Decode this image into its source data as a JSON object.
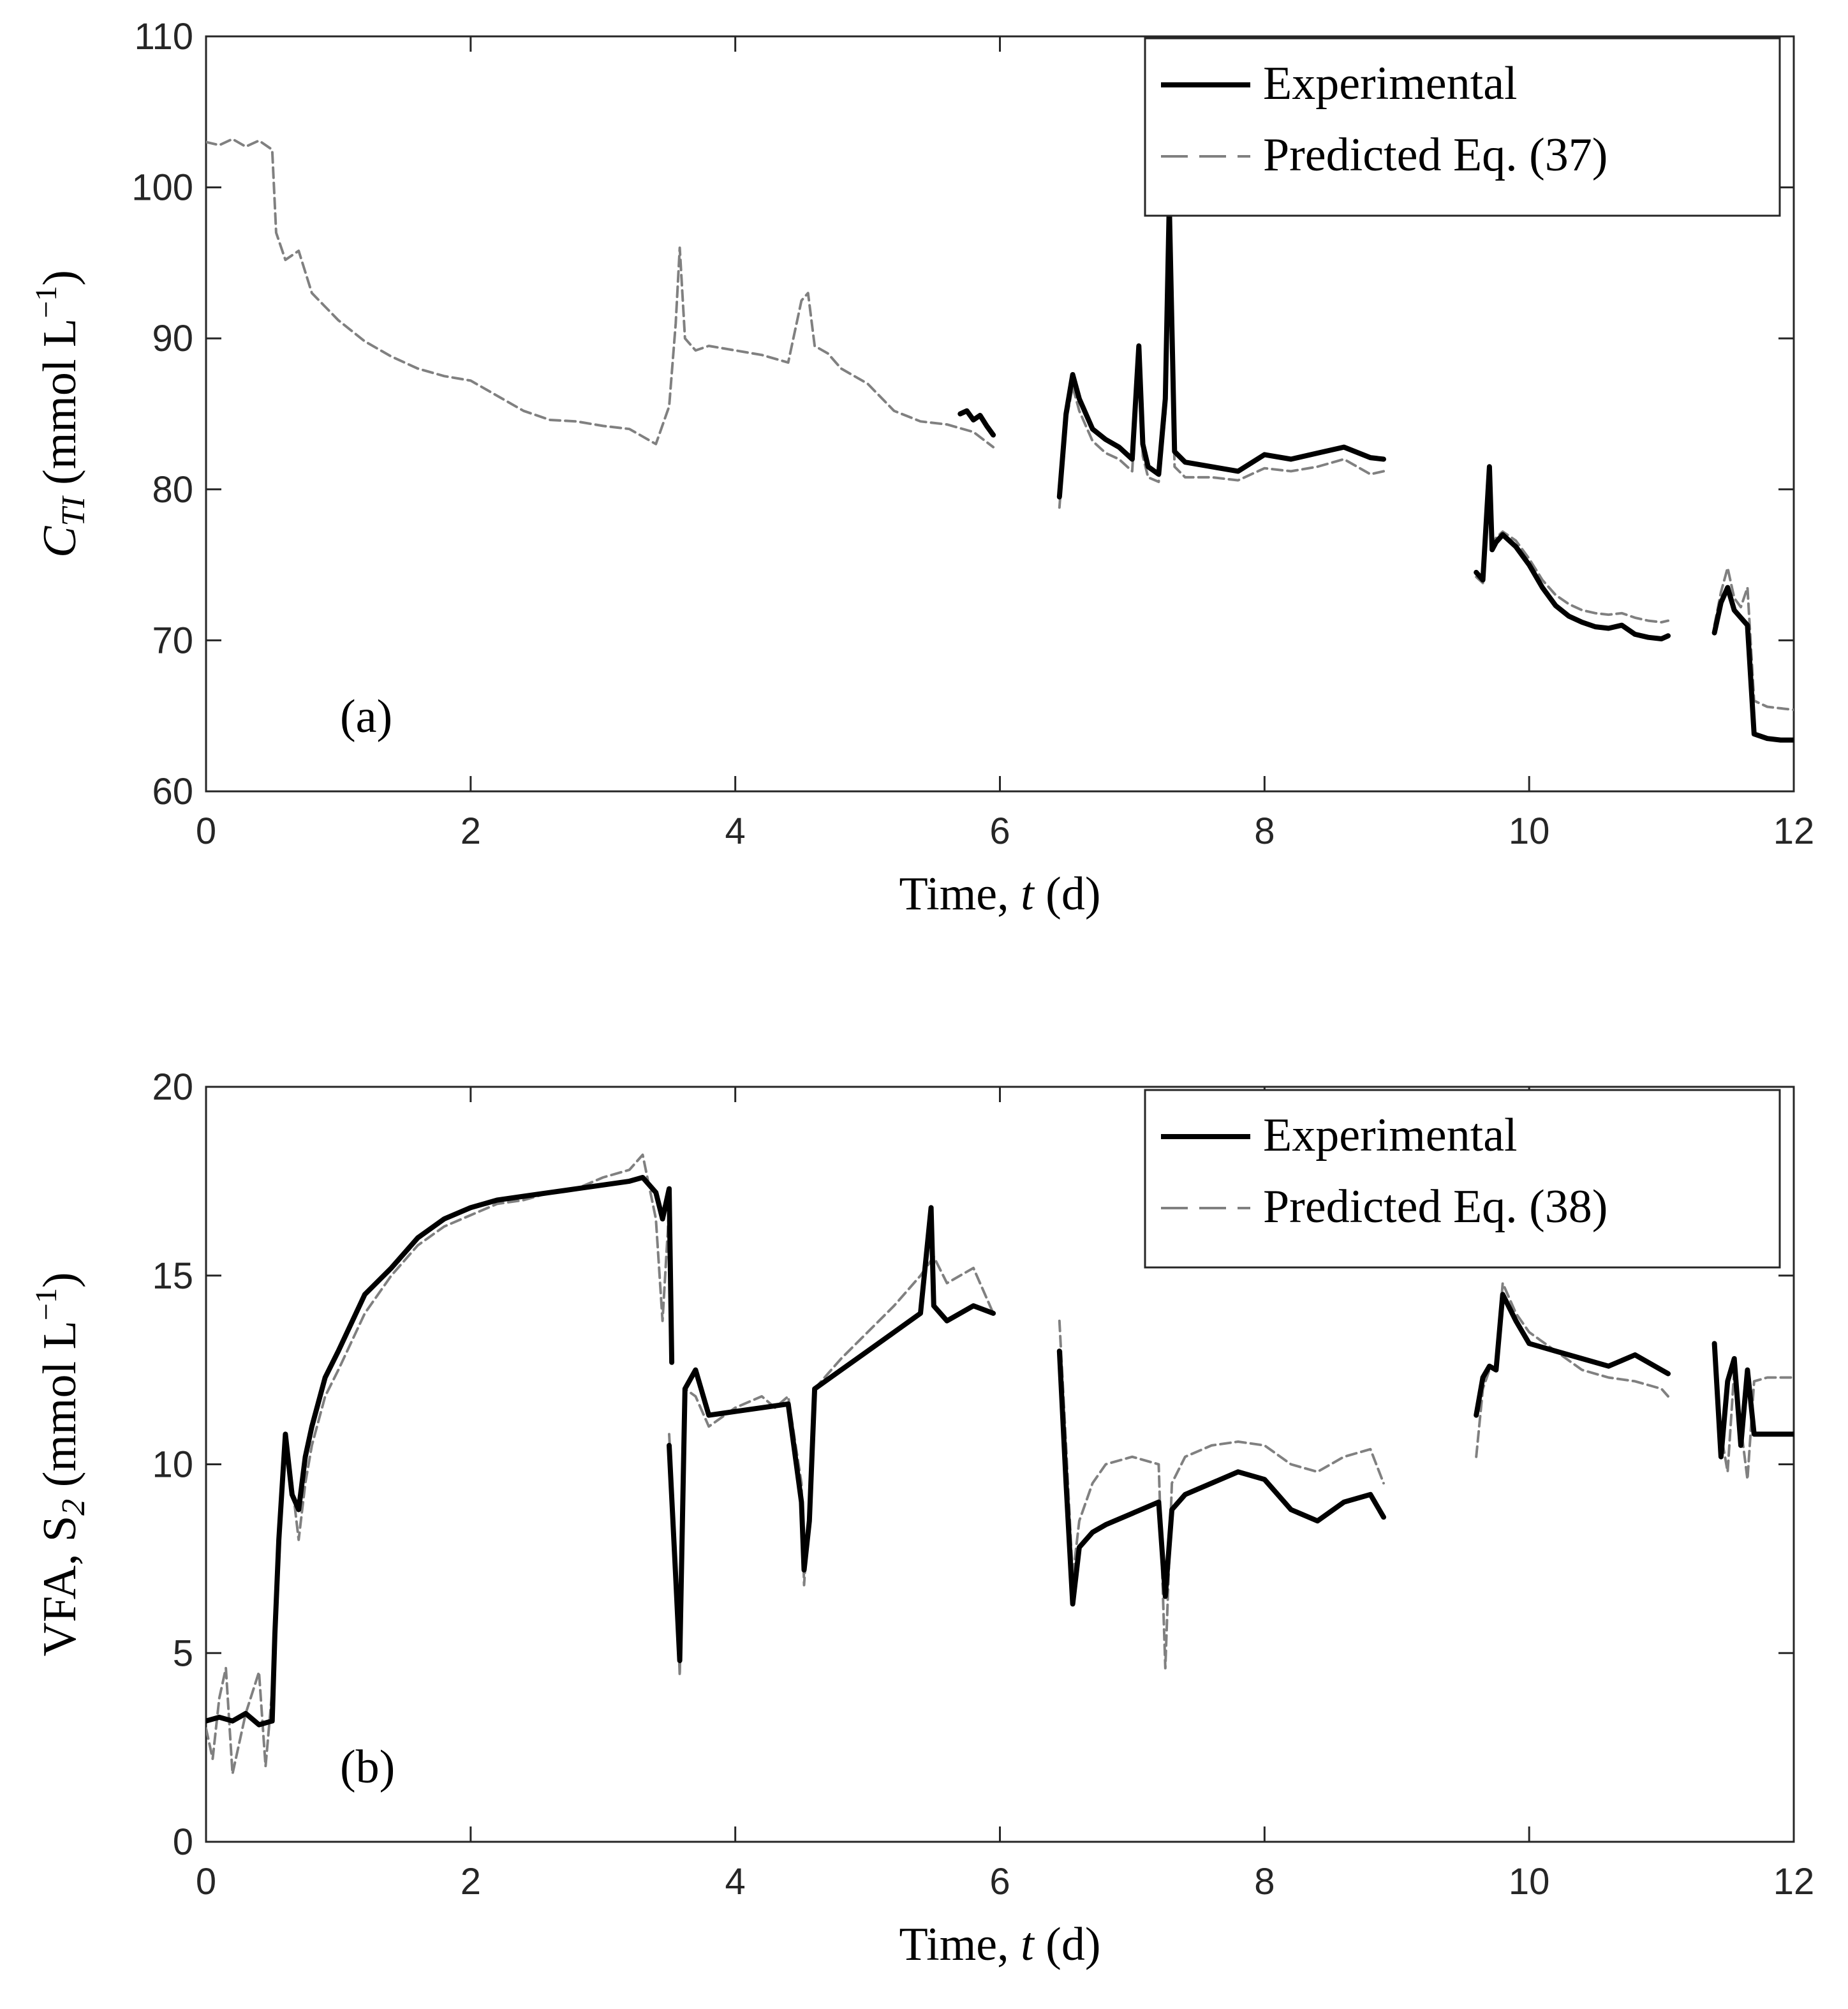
{
  "chart_data": [
    {
      "type": "line",
      "panel_label": "(a)",
      "xlabel": "Time, t (d)",
      "xlabel_prefix": "Time, ",
      "xlabel_var": "t",
      "xlabel_suffix": " (d)",
      "ylabel": "C_TI (mmol L^-1)",
      "ylabel_var": "C",
      "ylabel_sub": "TI",
      "ylabel_unit_open": " (mmol L",
      "ylabel_unit_exp": "−1",
      "ylabel_unit_close": ")",
      "xlim": [
        0,
        12
      ],
      "ylim": [
        60,
        110
      ],
      "xticks": [
        0,
        2,
        4,
        6,
        8,
        10,
        12
      ],
      "yticks": [
        60,
        70,
        80,
        90,
        100,
        110
      ],
      "legend_position": "top-right",
      "series": [
        {
          "name": "Experimental",
          "style": "solid",
          "color": "#000000",
          "segments": [
            {
              "x": [
                5.7,
                5.75,
                5.8,
                5.85,
                5.9,
                5.95
              ],
              "y": [
                85.0,
                85.2,
                84.6,
                84.9,
                84.2,
                83.6
              ]
            },
            {
              "x": [
                6.45,
                6.5,
                6.55,
                6.6,
                6.7,
                6.8,
                6.9,
                7.0,
                7.05,
                7.08,
                7.12,
                7.2,
                7.25,
                7.28,
                7.32,
                7.4,
                7.6,
                7.8,
                8.0,
                8.2,
                8.4,
                8.6,
                8.8,
                8.9
              ],
              "y": [
                79.5,
                85.0,
                87.6,
                86.0,
                84.0,
                83.3,
                82.8,
                82.0,
                89.5,
                83.0,
                81.5,
                81.0,
                86.0,
                99.0,
                82.5,
                81.8,
                81.5,
                81.2,
                82.3,
                82.0,
                82.4,
                82.8,
                82.1,
                82.0
              ]
            },
            {
              "x": [
                9.6,
                9.65,
                9.7,
                9.72,
                9.75,
                9.8,
                9.9,
                10.0,
                10.1,
                10.2,
                10.3,
                10.4,
                10.5,
                10.6,
                10.7,
                10.8,
                10.9,
                11.0,
                11.05
              ],
              "y": [
                74.5,
                74.0,
                81.5,
                76.0,
                76.5,
                77.0,
                76.2,
                75.0,
                73.5,
                72.3,
                71.6,
                71.2,
                70.9,
                70.8,
                71.0,
                70.4,
                70.2,
                70.1,
                70.3
              ]
            },
            {
              "x": [
                11.4,
                11.45,
                11.5,
                11.55,
                11.6,
                11.65,
                11.7,
                11.8,
                11.9,
                12.0
              ],
              "y": [
                70.5,
                72.5,
                73.5,
                72.0,
                71.5,
                71.0,
                63.8,
                63.5,
                63.4,
                63.4
              ]
            }
          ]
        },
        {
          "name": "Predicted Eq. (37)",
          "style": "dashed",
          "color": "#808080",
          "segments": [
            {
              "x": [
                0,
                0.1,
                0.2,
                0.3,
                0.4,
                0.5,
                0.53,
                0.6,
                0.7,
                0.8,
                1.0,
                1.2,
                1.4,
                1.6,
                1.8,
                2.0,
                2.2,
                2.4,
                2.6,
                2.8,
                3.0,
                3.2,
                3.4,
                3.5,
                3.55,
                3.58,
                3.62,
                3.7,
                3.8,
                4.0,
                4.2,
                4.4,
                4.5,
                4.55,
                4.6,
                4.7,
                4.8,
                5.0,
                5.2,
                5.4,
                5.6,
                5.8,
                5.95
              ],
              "y": [
                103.0,
                102.8,
                103.2,
                102.7,
                103.1,
                102.5,
                97.0,
                95.2,
                95.8,
                93.0,
                91.2,
                89.8,
                88.8,
                88.0,
                87.5,
                87.2,
                86.2,
                85.2,
                84.6,
                84.5,
                84.2,
                84.0,
                83.0,
                85.5,
                91.0,
                96.0,
                90.0,
                89.2,
                89.5,
                89.2,
                88.9,
                88.4,
                92.5,
                93.0,
                89.5,
                89.0,
                88.0,
                87.0,
                85.2,
                84.5,
                84.3,
                83.8,
                82.8
              ]
            },
            {
              "x": [
                6.45,
                6.5,
                6.55,
                6.6,
                6.7,
                6.8,
                6.9,
                7.0,
                7.05,
                7.08,
                7.12,
                7.2,
                7.25,
                7.28,
                7.32,
                7.4,
                7.6,
                7.8,
                8.0,
                8.2,
                8.4,
                8.6,
                8.8,
                8.9
              ],
              "y": [
                78.8,
                84.5,
                86.8,
                85.2,
                83.2,
                82.4,
                82.0,
                81.2,
                89.0,
                82.2,
                80.8,
                80.5,
                85.0,
                98.0,
                81.5,
                80.8,
                80.8,
                80.6,
                81.4,
                81.2,
                81.5,
                82.0,
                81.0,
                81.2
              ]
            },
            {
              "x": [
                9.6,
                9.65,
                9.7,
                9.72,
                9.75,
                9.8,
                9.9,
                10.0,
                10.1,
                10.2,
                10.3,
                10.4,
                10.5,
                10.6,
                10.7,
                10.8,
                10.9,
                11.0,
                11.05
              ],
              "y": [
                74.2,
                73.8,
                80.8,
                76.2,
                76.8,
                77.2,
                76.6,
                75.4,
                74.0,
                73.0,
                72.4,
                72.0,
                71.8,
                71.7,
                71.8,
                71.5,
                71.3,
                71.2,
                71.3
              ]
            },
            {
              "x": [
                11.4,
                11.45,
                11.5,
                11.55,
                11.6,
                11.65,
                11.7,
                11.8,
                11.9,
                12.0
              ],
              "y": [
                71.0,
                73.2,
                74.8,
                72.8,
                72.2,
                73.5,
                66.0,
                65.6,
                65.5,
                65.4
              ]
            }
          ]
        }
      ]
    },
    {
      "type": "line",
      "panel_label": "(b)",
      "xlabel": "Time, t (d)",
      "xlabel_prefix": "Time, ",
      "xlabel_var": "t",
      "xlabel_suffix": " (d)",
      "ylabel": "VFA, S_2 (mmol L^-1)",
      "ylabel_var": "VFA, S",
      "ylabel_sub": "2",
      "ylabel_unit_open": " (mmol L",
      "ylabel_unit_exp": "−1",
      "ylabel_unit_close": ")",
      "xlim": [
        0,
        12
      ],
      "ylim": [
        0,
        20
      ],
      "xticks": [
        0,
        2,
        4,
        6,
        8,
        10,
        12
      ],
      "yticks": [
        0,
        5,
        10,
        15,
        20
      ],
      "legend_position": "top-right",
      "series": [
        {
          "name": "Experimental",
          "style": "solid",
          "color": "#000000",
          "segments": [
            {
              "x": [
                0,
                0.1,
                0.2,
                0.3,
                0.4,
                0.5,
                0.52,
                0.55,
                0.6,
                0.65,
                0.7,
                0.75,
                0.8,
                0.9,
                1.0,
                1.2,
                1.4,
                1.6,
                1.8,
                2.0,
                2.2,
                2.4,
                2.6,
                2.8,
                3.0,
                3.2,
                3.3,
                3.4,
                3.45,
                3.5,
                3.52
              ],
              "y": [
                3.2,
                3.3,
                3.2,
                3.4,
                3.1,
                3.2,
                5.5,
                8.0,
                10.8,
                9.2,
                8.8,
                10.2,
                11.0,
                12.3,
                13.0,
                14.5,
                15.2,
                16.0,
                16.5,
                16.8,
                17.0,
                17.1,
                17.2,
                17.3,
                17.4,
                17.5,
                17.6,
                17.2,
                16.5,
                17.3,
                12.7
              ]
            },
            {
              "x": [
                3.5,
                3.55,
                3.58,
                3.62,
                3.7,
                3.8,
                4.0,
                4.2,
                4.4,
                4.5,
                4.52,
                4.56,
                4.6,
                4.8,
                5.0,
                5.2,
                5.4,
                5.48,
                5.5,
                5.6,
                5.8,
                5.95
              ],
              "y": [
                10.5,
                7.0,
                4.8,
                12.0,
                12.5,
                11.3,
                11.4,
                11.5,
                11.6,
                9.0,
                7.2,
                8.5,
                12.0,
                12.5,
                13.0,
                13.5,
                14.0,
                16.8,
                14.2,
                13.8,
                14.2,
                14.0
              ]
            },
            {
              "x": [
                6.45,
                6.5,
                6.55,
                6.6,
                6.7,
                6.8,
                7.0,
                7.2,
                7.25,
                7.3,
                7.4,
                7.6,
                7.8,
                8.0,
                8.2,
                8.4,
                8.6,
                8.8,
                8.9
              ],
              "y": [
                13.0,
                9.5,
                6.3,
                7.8,
                8.2,
                8.4,
                8.7,
                9.0,
                6.5,
                8.8,
                9.2,
                9.5,
                9.8,
                9.6,
                8.8,
                8.5,
                9.0,
                9.2,
                8.6
              ]
            },
            {
              "x": [
                9.6,
                9.65,
                9.7,
                9.75,
                9.8,
                9.9,
                10.0,
                10.2,
                10.4,
                10.6,
                10.8,
                11.0,
                11.05
              ],
              "y": [
                11.3,
                12.3,
                12.6,
                12.5,
                14.5,
                13.8,
                13.2,
                13.0,
                12.8,
                12.6,
                12.9,
                12.5,
                12.4
              ]
            },
            {
              "x": [
                11.4,
                11.45,
                11.5,
                11.55,
                11.6,
                11.65,
                11.7,
                11.8,
                12.0
              ],
              "y": [
                13.2,
                10.2,
                12.2,
                12.8,
                10.5,
                12.5,
                10.8,
                10.8,
                10.8
              ]
            }
          ]
        },
        {
          "name": "Predicted Eq. (38)",
          "style": "dashed",
          "color": "#808080",
          "segments": [
            {
              "x": [
                0,
                0.05,
                0.1,
                0.15,
                0.2,
                0.3,
                0.4,
                0.45,
                0.5,
                0.52,
                0.55,
                0.6,
                0.65,
                0.7,
                0.75,
                0.8,
                0.9,
                1.0,
                1.2,
                1.4,
                1.6,
                1.8,
                2.0,
                2.2,
                2.4,
                2.6,
                2.8,
                3.0,
                3.2,
                3.3,
                3.4,
                3.45,
                3.5,
                3.52
              ],
              "y": [
                3.0,
                2.2,
                3.8,
                4.6,
                1.8,
                3.4,
                4.5,
                2.0,
                4.0,
                5.0,
                7.5,
                10.5,
                9.5,
                8.0,
                9.5,
                10.5,
                11.8,
                12.5,
                14.0,
                15.0,
                15.8,
                16.3,
                16.6,
                16.9,
                17.0,
                17.2,
                17.3,
                17.6,
                17.8,
                18.2,
                16.5,
                13.8,
                16.8,
                12.8
              ]
            },
            {
              "x": [
                3.5,
                3.55,
                3.58,
                3.62,
                3.7,
                3.8,
                4.0,
                4.2,
                4.3,
                4.4,
                4.5,
                4.52,
                4.56,
                4.6,
                4.8,
                5.0,
                5.2,
                5.4,
                5.5,
                5.6,
                5.8,
                5.95
              ],
              "y": [
                10.8,
                7.5,
                4.4,
                12.0,
                11.8,
                11.0,
                11.5,
                11.8,
                11.5,
                11.8,
                9.5,
                6.8,
                9.0,
                12.0,
                12.8,
                13.5,
                14.2,
                15.0,
                15.5,
                14.8,
                15.2,
                14.0
              ]
            },
            {
              "x": [
                6.45,
                6.5,
                6.55,
                6.6,
                6.7,
                6.8,
                7.0,
                7.2,
                7.25,
                7.3,
                7.4,
                7.6,
                7.8,
                8.0,
                8.2,
                8.4,
                8.6,
                8.8,
                8.9
              ],
              "y": [
                13.8,
                10.5,
                7.0,
                8.5,
                9.5,
                10.0,
                10.2,
                10.0,
                4.6,
                9.5,
                10.2,
                10.5,
                10.6,
                10.5,
                10.0,
                9.8,
                10.2,
                10.4,
                9.5
              ]
            },
            {
              "x": [
                9.6,
                9.65,
                9.7,
                9.75,
                9.8,
                9.9,
                10.0,
                10.2,
                10.4,
                10.6,
                10.8,
                11.0,
                11.05
              ],
              "y": [
                10.2,
                12.0,
                12.5,
                12.6,
                14.8,
                14.0,
                13.5,
                13.0,
                12.5,
                12.3,
                12.2,
                12.0,
                11.8
              ]
            },
            {
              "x": [
                11.4,
                11.45,
                11.5,
                11.55,
                11.6,
                11.65,
                11.7,
                11.8,
                12.0
              ],
              "y": [
                13.0,
                10.8,
                9.8,
                12.5,
                11.0,
                9.6,
                12.2,
                12.3,
                12.3
              ]
            }
          ]
        }
      ]
    }
  ]
}
